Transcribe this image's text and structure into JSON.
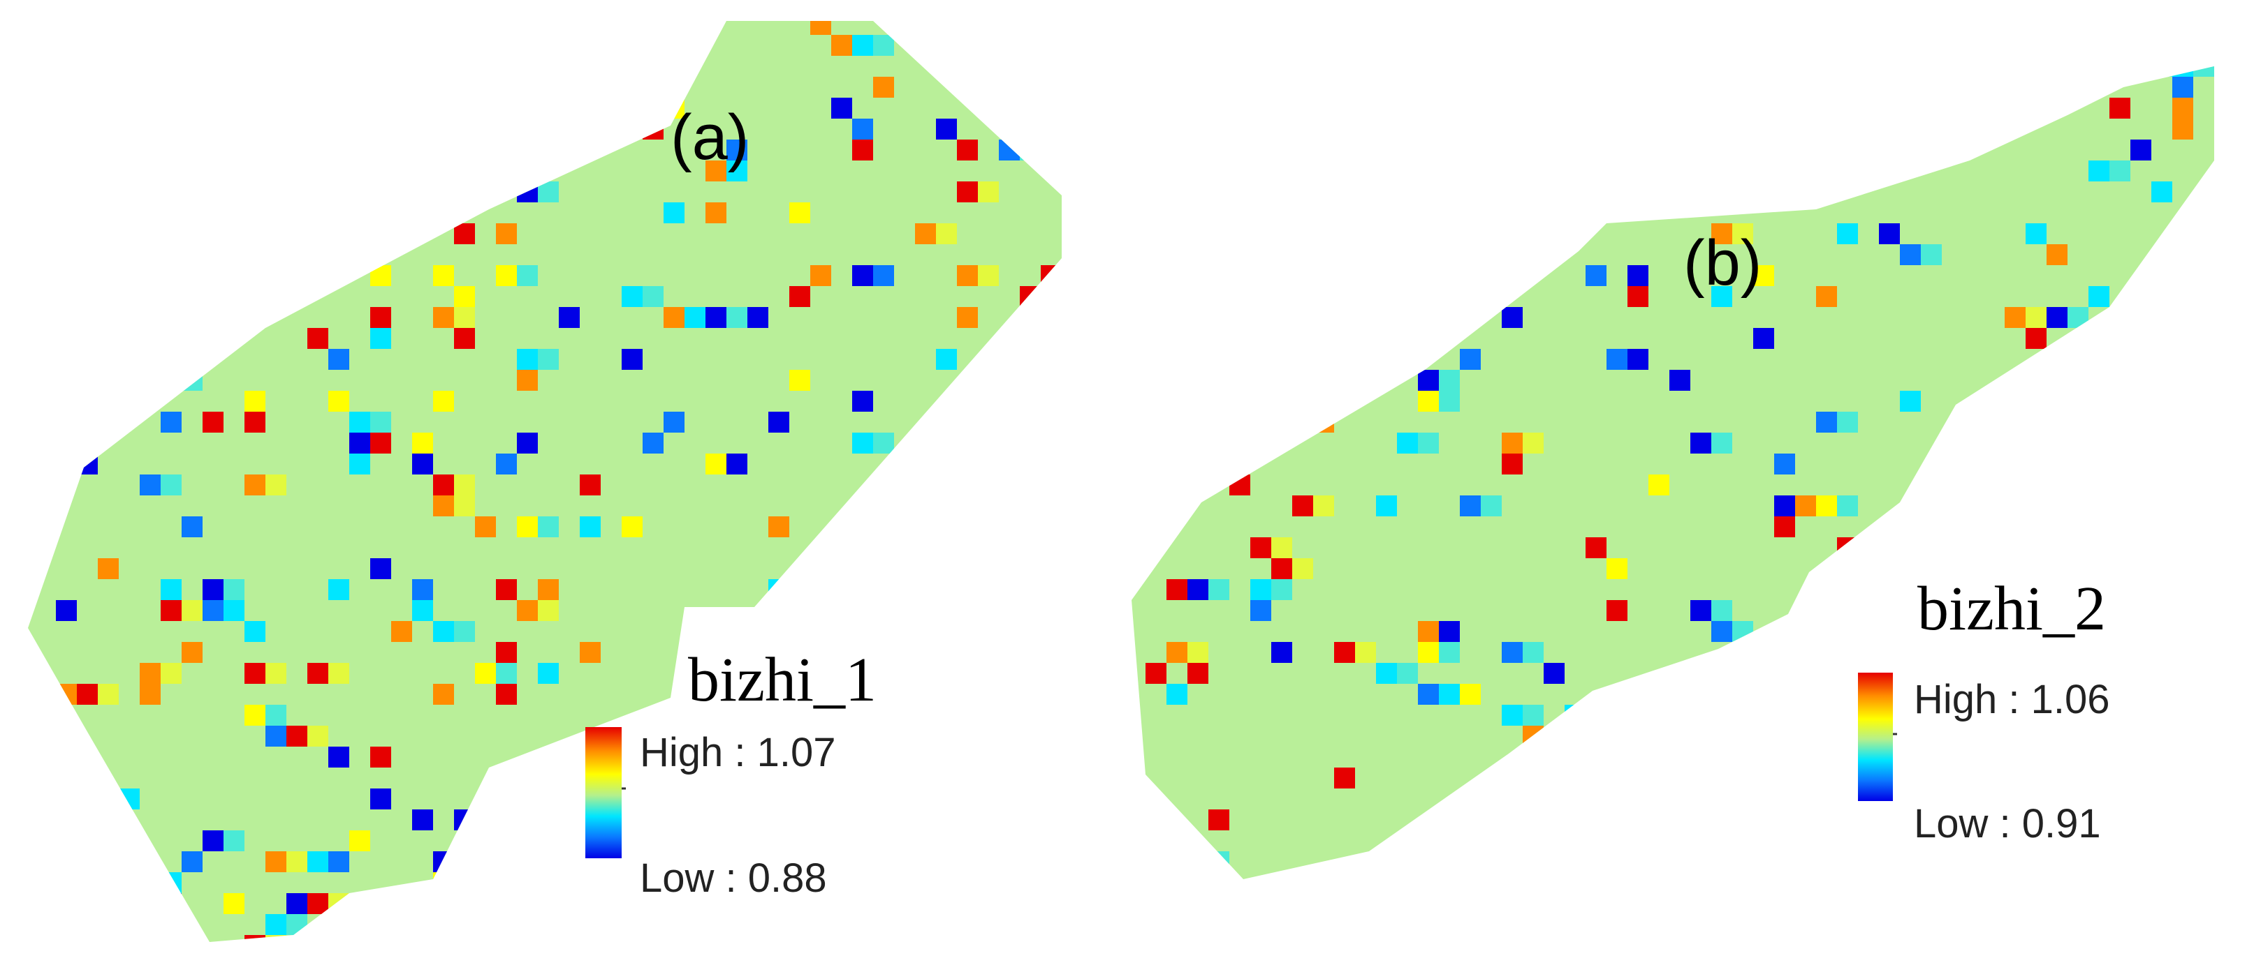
{
  "panels": [
    {
      "panel_label": "(a)",
      "layer_name": "bizhi_1",
      "legend": {
        "high_label": "High : 1.07",
        "low_label": "Low : 0.88"
      },
      "value_range": [
        0.88,
        1.07
      ]
    },
    {
      "panel_label": "(b)",
      "layer_name": "bizhi_2",
      "legend": {
        "high_label": "High : 1.06",
        "low_label": "Low : 0.91"
      },
      "value_range": [
        0.91,
        1.06
      ]
    }
  ],
  "color_ramp": [
    "#e60000",
    "#ff8c00",
    "#ffff00",
    "#b4f08c",
    "#00e6ff",
    "#0a78ff",
    "#0000e6"
  ]
}
